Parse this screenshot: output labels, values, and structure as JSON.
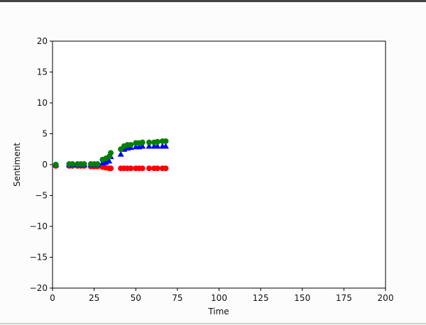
{
  "chart_data": {
    "type": "scatter",
    "title": "",
    "xlabel": "Time",
    "ylabel": "Sentiment",
    "xlim": [
      0,
      200
    ],
    "ylim": [
      -20,
      20
    ],
    "xticks": [
      "0",
      "25",
      "50",
      "75",
      "100",
      "125",
      "150",
      "175",
      "200"
    ],
    "yticks": [
      "−20",
      "−15",
      "−10",
      "−5",
      "0",
      "5",
      "10",
      "15",
      "20"
    ],
    "grid": false,
    "legend": "none",
    "series": [
      {
        "color": "#ff0000",
        "marker": "circle",
        "x": [
          2,
          10,
          12,
          15,
          17,
          19,
          23,
          25,
          27,
          30,
          32,
          34,
          35,
          41,
          43,
          45,
          47,
          50,
          52,
          54,
          58,
          61,
          63,
          66,
          68
        ],
        "y": [
          -0.2,
          -0.2,
          -0.2,
          -0.2,
          -0.2,
          -0.2,
          -0.3,
          -0.3,
          -0.3,
          -0.4,
          -0.5,
          -0.6,
          -0.6,
          -0.6,
          -0.6,
          -0.6,
          -0.6,
          -0.6,
          -0.6,
          -0.6,
          -0.6,
          -0.6,
          -0.6,
          -0.6,
          -0.6
        ]
      },
      {
        "color": "#0000ff",
        "marker": "triangle",
        "x": [
          2,
          10,
          12,
          15,
          17,
          19,
          23,
          25,
          27,
          30,
          32,
          34,
          35,
          41,
          43,
          45,
          47,
          50,
          52,
          54,
          58,
          61,
          63,
          66,
          68
        ],
        "y": [
          0.0,
          0.0,
          0.0,
          0.0,
          0.0,
          0.0,
          0.0,
          0.0,
          0.0,
          0.3,
          0.4,
          0.6,
          1.3,
          1.7,
          2.5,
          2.7,
          2.8,
          2.9,
          2.9,
          3.0,
          3.0,
          3.0,
          3.0,
          3.0,
          3.0
        ]
      },
      {
        "color": "#008000",
        "marker": "circle",
        "x": [
          2,
          10,
          12,
          15,
          17,
          19,
          23,
          25,
          27,
          30,
          32,
          34,
          35,
          41,
          43,
          45,
          47,
          50,
          52,
          54,
          58,
          61,
          63,
          66,
          68
        ],
        "y": [
          0.0,
          0.1,
          0.1,
          0.1,
          0.1,
          0.1,
          0.1,
          0.1,
          0.1,
          0.8,
          1.0,
          1.3,
          1.9,
          2.5,
          3.0,
          3.2,
          3.2,
          3.5,
          3.5,
          3.6,
          3.6,
          3.6,
          3.7,
          3.8,
          3.8
        ]
      }
    ]
  }
}
